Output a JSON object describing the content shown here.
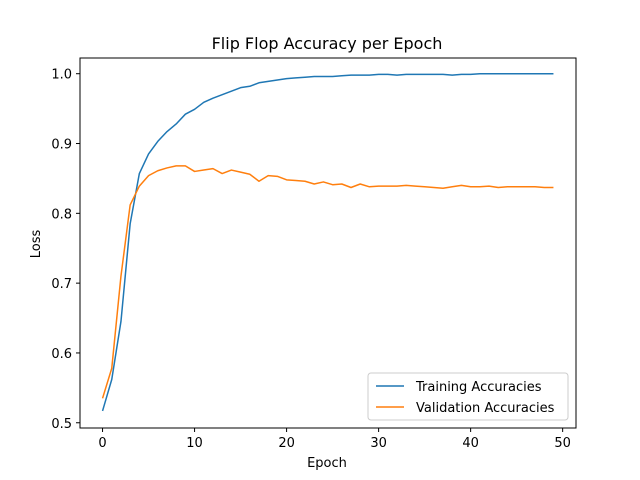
{
  "chart_data": {
    "type": "line",
    "title": "Flip Flop Accuracy per Epoch",
    "xlabel": "Epoch",
    "ylabel": "Loss",
    "xlim": [
      -2.45,
      51.45
    ],
    "ylim": [
      0.4925,
      1.0225
    ],
    "xticks": [
      0,
      10,
      20,
      30,
      40,
      50
    ],
    "yticks": [
      0.5,
      0.6,
      0.7,
      0.8,
      0.9,
      1.0
    ],
    "ytick_labels": [
      "0.5",
      "0.6",
      "0.7",
      "0.8",
      "0.9",
      "1.0"
    ],
    "grid": false,
    "legend_position": "lower-right",
    "x": [
      0,
      1,
      2,
      3,
      4,
      5,
      6,
      7,
      8,
      9,
      10,
      11,
      12,
      13,
      14,
      15,
      16,
      17,
      18,
      19,
      20,
      21,
      22,
      23,
      24,
      25,
      26,
      27,
      28,
      29,
      30,
      31,
      32,
      33,
      34,
      35,
      36,
      37,
      38,
      39,
      40,
      41,
      42,
      43,
      44,
      45,
      46,
      47,
      48,
      49
    ],
    "series": [
      {
        "name": "Training Accuracies",
        "color": "#1f77b4",
        "values": [
          0.517,
          0.562,
          0.645,
          0.785,
          0.857,
          0.885,
          0.903,
          0.917,
          0.928,
          0.942,
          0.949,
          0.959,
          0.965,
          0.97,
          0.975,
          0.98,
          0.982,
          0.987,
          0.989,
          0.991,
          0.993,
          0.994,
          0.995,
          0.996,
          0.996,
          0.996,
          0.997,
          0.998,
          0.998,
          0.998,
          0.999,
          0.999,
          0.998,
          0.999,
          0.999,
          0.999,
          0.999,
          0.999,
          0.998,
          0.999,
          0.999,
          1.0,
          1.0,
          1.0,
          1.0,
          1.0,
          1.0,
          1.0,
          1.0,
          1.0
        ]
      },
      {
        "name": "Validation Accuracies",
        "color": "#ff7f0e",
        "values": [
          0.535,
          0.578,
          0.71,
          0.812,
          0.839,
          0.854,
          0.861,
          0.865,
          0.868,
          0.868,
          0.86,
          0.862,
          0.864,
          0.857,
          0.862,
          0.859,
          0.856,
          0.846,
          0.854,
          0.853,
          0.848,
          0.847,
          0.846,
          0.842,
          0.845,
          0.841,
          0.842,
          0.837,
          0.842,
          0.838,
          0.839,
          0.839,
          0.839,
          0.84,
          0.839,
          0.838,
          0.837,
          0.836,
          0.838,
          0.84,
          0.838,
          0.838,
          0.839,
          0.837,
          0.838,
          0.838,
          0.838,
          0.838,
          0.837,
          0.837
        ]
      }
    ]
  }
}
